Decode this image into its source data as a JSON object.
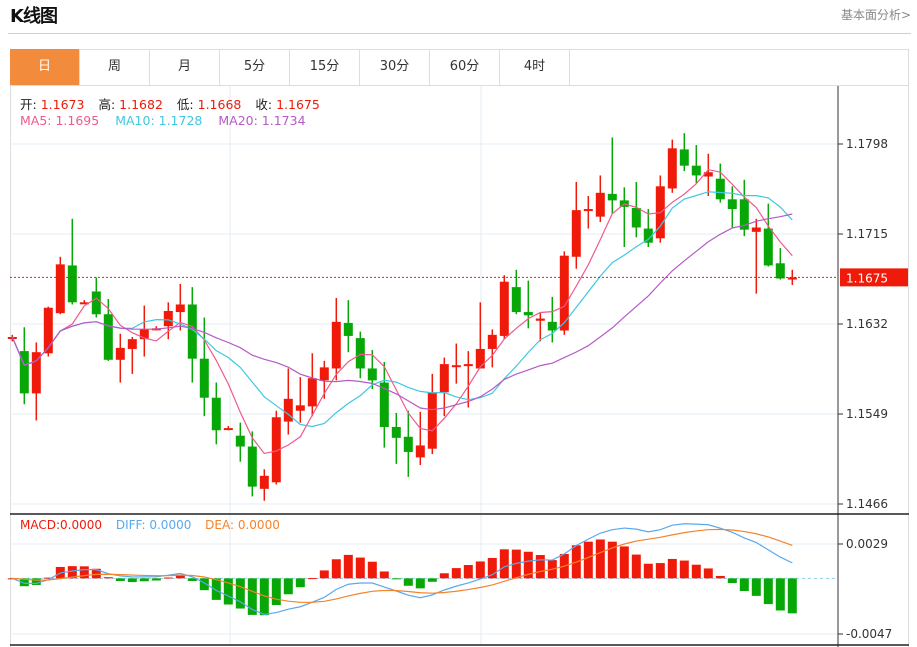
{
  "header": {
    "title": "K线图",
    "link": "基本面分析>"
  },
  "tabs": [
    {
      "label": "日",
      "active": true
    },
    {
      "label": "周"
    },
    {
      "label": "月"
    },
    {
      "label": "5分"
    },
    {
      "label": "15分"
    },
    {
      "label": "30分"
    },
    {
      "label": "60分"
    },
    {
      "label": "4时"
    }
  ],
  "ohlc": {
    "open_label": "开:",
    "open": "1.1673",
    "high_label": "高:",
    "high": "1.1682",
    "low_label": "低:",
    "low": "1.1668",
    "close_label": "收:",
    "close": "1.1675"
  },
  "ma": {
    "ma5": "MA5: 1.1695",
    "ma10": "MA10: 1.1728",
    "ma20": "MA20: 1.1734"
  },
  "macd_legend": {
    "macd": "MACD:0.0000",
    "diff": "DIFF: 0.0000",
    "dea": "DEA: 0.0000"
  },
  "colors": {
    "up": "#f01a0a",
    "down": "#07a707",
    "ma5": "#ef5a8c",
    "ma10": "#3fc8e0",
    "ma20": "#b55bc6",
    "diff": "#5aa8ec",
    "dea": "#f5832b",
    "active_tab": "#f28b3c"
  },
  "chart_data": {
    "type": "candlestick",
    "price_axis_ticks": [
      "1.1798",
      "1.1715",
      "1.1632",
      "1.1549",
      "1.1466"
    ],
    "price_range": [
      1.1466,
      1.1798
    ],
    "current_price": "1.1675",
    "candles_ohlc": [
      [
        1.1619,
        1.1622,
        1.1616,
        1.162
      ],
      [
        1.1607,
        1.1629,
        1.1558,
        1.1568
      ],
      [
        1.1568,
        1.1615,
        1.1543,
        1.1606
      ],
      [
        1.1605,
        1.1648,
        1.1602,
        1.1647
      ],
      [
        1.1642,
        1.1694,
        1.1641,
        1.1687
      ],
      [
        1.1686,
        1.1729,
        1.165,
        1.1652
      ],
      [
        1.1652,
        1.1654,
        1.1651,
        1.1652
      ],
      [
        1.1662,
        1.1675,
        1.1638,
        1.1641
      ],
      [
        1.1641,
        1.1655,
        1.1598,
        1.1599
      ],
      [
        1.1599,
        1.1623,
        1.1578,
        1.161
      ],
      [
        1.1609,
        1.162,
        1.1586,
        1.1618
      ],
      [
        1.1618,
        1.1649,
        1.1602,
        1.1627
      ],
      [
        1.1628,
        1.163,
        1.1626,
        1.1628
      ],
      [
        1.163,
        1.1652,
        1.1618,
        1.1644
      ],
      [
        1.1643,
        1.1669,
        1.1626,
        1.165
      ],
      [
        1.165,
        1.1666,
        1.1578,
        1.16
      ],
      [
        1.16,
        1.1638,
        1.1547,
        1.1564
      ],
      [
        1.1564,
        1.1578,
        1.1521,
        1.1534
      ],
      [
        1.1536,
        1.1538,
        1.1534,
        1.1536
      ],
      [
        1.1529,
        1.1541,
        1.1505,
        1.1519
      ],
      [
        1.1519,
        1.1533,
        1.1473,
        1.1482
      ],
      [
        1.148,
        1.1498,
        1.1469,
        1.1492
      ],
      [
        1.1486,
        1.1552,
        1.1484,
        1.1546
      ],
      [
        1.1542,
        1.1591,
        1.153,
        1.1563
      ],
      [
        1.1552,
        1.1583,
        1.1541,
        1.1557
      ],
      [
        1.1556,
        1.1605,
        1.1547,
        1.1582
      ],
      [
        1.158,
        1.1598,
        1.1563,
        1.1592
      ],
      [
        1.1591,
        1.1656,
        1.158,
        1.1634
      ],
      [
        1.1633,
        1.1654,
        1.1606,
        1.1621
      ],
      [
        1.1619,
        1.1625,
        1.1582,
        1.1591
      ],
      [
        1.1591,
        1.1608,
        1.1572,
        1.158
      ],
      [
        1.1578,
        1.1597,
        1.1518,
        1.1537
      ],
      [
        1.1537,
        1.155,
        1.1503,
        1.1527
      ],
      [
        1.1528,
        1.1552,
        1.1491,
        1.1514
      ],
      [
        1.1509,
        1.1551,
        1.1502,
        1.152
      ],
      [
        1.1517,
        1.1586,
        1.1512,
        1.1569
      ],
      [
        1.1569,
        1.1601,
        1.1547,
        1.1595
      ],
      [
        1.1594,
        1.1614,
        1.1577,
        1.1594
      ],
      [
        1.1595,
        1.1607,
        1.1555,
        1.1595
      ],
      [
        1.1591,
        1.1652,
        1.1591,
        1.1609
      ],
      [
        1.1609,
        1.1627,
        1.1592,
        1.1622
      ],
      [
        1.1621,
        1.1677,
        1.1618,
        1.1671
      ],
      [
        1.1666,
        1.1682,
        1.1641,
        1.1643
      ],
      [
        1.1643,
        1.1672,
        1.1628,
        1.164
      ],
      [
        1.1635,
        1.1642,
        1.1616,
        1.1637
      ],
      [
        1.1634,
        1.1657,
        1.1615,
        1.1626
      ],
      [
        1.1626,
        1.1699,
        1.1622,
        1.1695
      ],
      [
        1.1694,
        1.1763,
        1.1683,
        1.1737
      ],
      [
        1.1737,
        1.175,
        1.172,
        1.1738
      ],
      [
        1.1731,
        1.1769,
        1.1726,
        1.1753
      ],
      [
        1.1752,
        1.1804,
        1.1734,
        1.1746
      ],
      [
        1.1746,
        1.1758,
        1.1703,
        1.174
      ],
      [
        1.1739,
        1.1763,
        1.1712,
        1.1721
      ],
      [
        1.172,
        1.1738,
        1.1703,
        1.1707
      ],
      [
        1.1711,
        1.1769,
        1.1707,
        1.1759
      ],
      [
        1.1757,
        1.1802,
        1.1753,
        1.1794
      ],
      [
        1.1793,
        1.1808,
        1.1773,
        1.1778
      ],
      [
        1.1778,
        1.1797,
        1.1762,
        1.1769
      ],
      [
        1.1768,
        1.1789,
        1.175,
        1.1772
      ],
      [
        1.1766,
        1.178,
        1.1744,
        1.1747
      ],
      [
        1.1747,
        1.1759,
        1.1721,
        1.1738
      ],
      [
        1.1747,
        1.1765,
        1.1713,
        1.1719
      ],
      [
        1.1717,
        1.1729,
        1.166,
        1.1721
      ],
      [
        1.172,
        1.1743,
        1.1685,
        1.1686
      ],
      [
        1.1688,
        1.1702,
        1.1673,
        1.1674
      ],
      [
        1.1673,
        1.1682,
        1.1668,
        1.1675
      ]
    ],
    "moving_averages": [
      5,
      10,
      20
    ],
    "macd_axis_ticks": [
      "0.0029",
      "-0.0047"
    ],
    "macd_range": [
      -0.0047,
      0.0029
    ],
    "grid": true
  }
}
